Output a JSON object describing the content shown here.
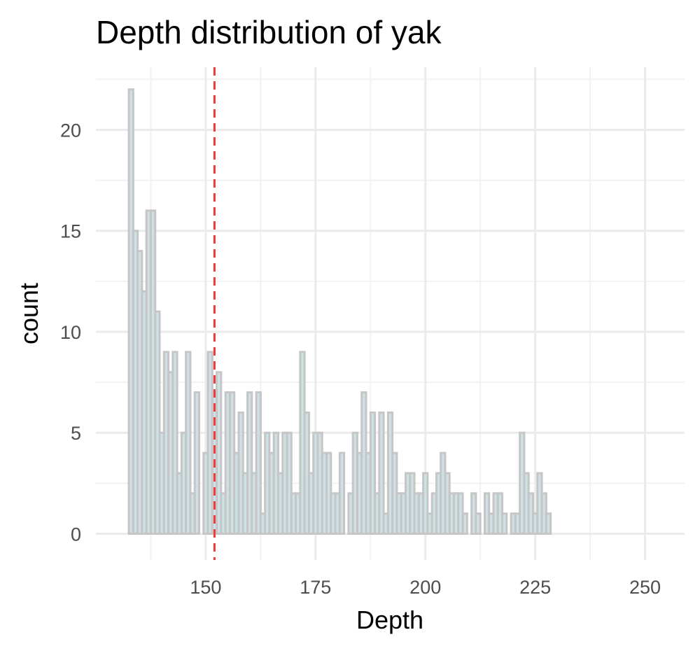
{
  "chart_data": {
    "type": "histogram",
    "title": "Depth distribution of yak",
    "xlabel": "Depth",
    "ylabel": "count",
    "xlim": [
      125,
      259
    ],
    "ylim": [
      -1.3,
      23.1
    ],
    "x_ticks": [
      150,
      175,
      200,
      225,
      250
    ],
    "y_ticks": [
      0,
      5,
      10,
      15,
      20
    ],
    "grid": true,
    "bin_start": 132.5,
    "bin_width": 1,
    "counts": [
      22,
      15,
      14,
      12,
      16,
      16,
      11,
      5,
      9,
      8,
      9,
      3,
      5,
      9,
      2,
      7,
      0,
      4,
      9,
      7,
      8,
      2,
      7,
      7,
      4,
      6,
      3,
      7,
      3,
      7,
      1,
      5,
      4,
      5,
      3,
      5,
      5,
      2,
      2,
      9,
      6,
      3,
      5,
      5,
      4,
      4,
      2,
      2,
      4,
      0,
      2,
      5,
      4,
      7,
      4,
      6,
      2,
      6,
      1,
      6,
      4,
      2,
      2,
      3,
      3,
      2,
      2,
      3,
      1,
      2,
      3,
      4,
      3,
      2,
      2,
      2,
      1,
      0,
      2,
      1,
      0,
      2,
      1,
      2,
      2,
      1,
      0,
      1,
      1,
      5,
      3,
      2,
      1,
      3,
      2,
      1
    ],
    "vline": 152,
    "colors": {
      "bar_fill": "#cde2e6",
      "bar_outline": "#c6c6c6",
      "vline": "#f03b3b",
      "grid": "#ebebeb"
    }
  }
}
